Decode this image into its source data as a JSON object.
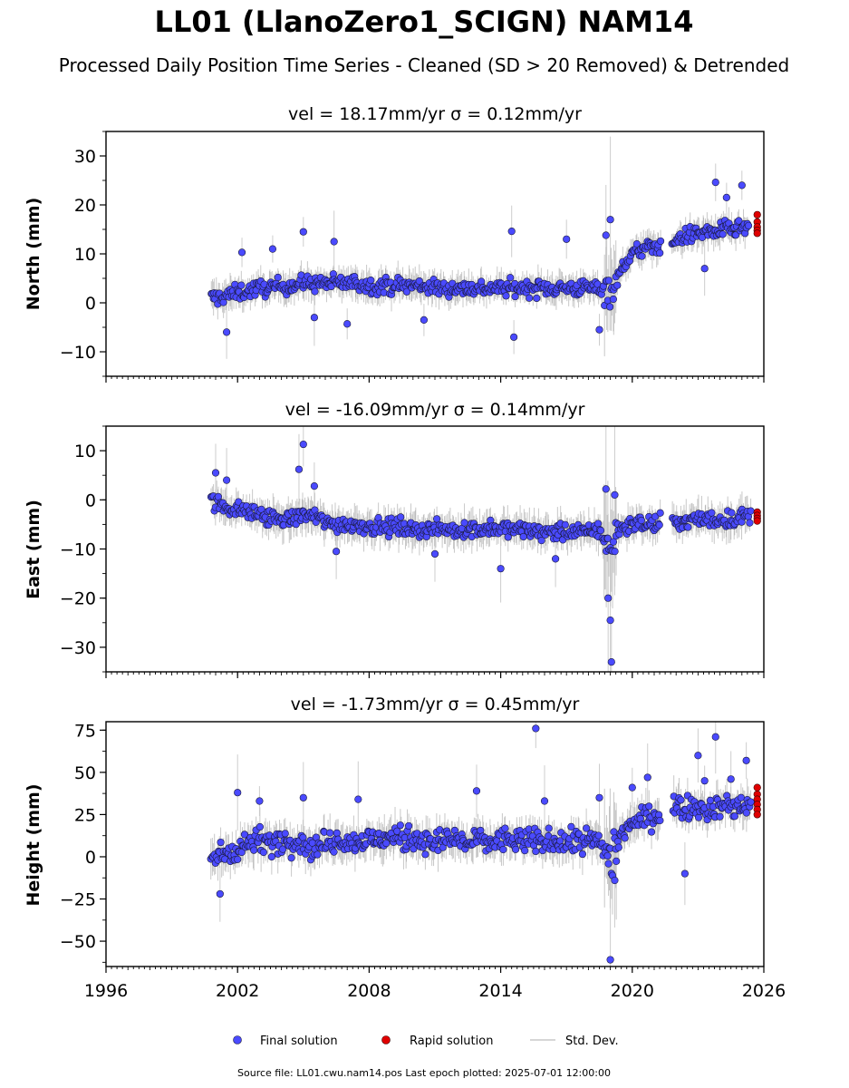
{
  "figure": {
    "title": "LL01 (LlanoZero1_SCIGN) NAM14",
    "subtitle": "Processed Daily Position Time Series - Cleaned (SD > 20 Removed) & Detrended",
    "footer": "Source file: LL01.cwu.nam14.pos  Last epoch plotted: 2025-07-01 12:00:00"
  },
  "legend": {
    "placement": "bottom-center",
    "items": [
      {
        "label": "Final solution",
        "color": "#4a4aff",
        "marker": "circle"
      },
      {
        "label": "Rapid solution",
        "color": "#e00000",
        "marker": "circle"
      },
      {
        "label": "Std. Dev.",
        "color": "#c8c8c8",
        "marker": "line"
      }
    ]
  },
  "colors": {
    "final": "#4a4aff",
    "rapid": "#e00000",
    "stddev": "#9a9a9a",
    "edge": "#1a1a3a"
  },
  "chart_data": [
    {
      "type": "scatter",
      "title": "vel = 18.17mm/yr   σ = 0.12mm/yr",
      "xlabel": "",
      "ylabel": "North (mm)",
      "xlim": [
        1996,
        2026
      ],
      "ylim": [
        -15,
        35
      ],
      "yticks": [
        -10,
        0,
        10,
        20,
        30
      ],
      "yticklabels": [
        "−10",
        "0",
        "10",
        "20",
        "30"
      ],
      "xticks": [
        1996,
        2002,
        2008,
        2014,
        2020,
        2026
      ],
      "xticklabels": [],
      "series": [
        {
          "name": "Final solution",
          "x": [
            2000.8,
            2001.0,
            2001.5,
            2002.0,
            2002.5,
            2003.0,
            2003.5,
            2004.0,
            2004.5,
            2005.0,
            2005.5,
            2006.0,
            2006.5,
            2007.0,
            2007.5,
            2008.0,
            2008.5,
            2009.0,
            2009.5,
            2010.0,
            2010.5,
            2011.0,
            2011.5,
            2012.0,
            2012.5,
            2013.0,
            2013.5,
            2014.0,
            2014.5,
            2015.0,
            2015.5,
            2016.0,
            2016.5,
            2017.0,
            2017.5,
            2018.0,
            2018.5,
            2018.9,
            2019.1,
            2019.3,
            2019.6,
            2020.0,
            2020.5,
            2021.0,
            2021.4,
            2021.9,
            2022.3,
            2022.8,
            2023.3,
            2023.8,
            2024.3,
            2024.8,
            2025.3
          ],
          "y": [
            1.0,
            1.0,
            1.5,
            2.0,
            2.5,
            3.0,
            3.0,
            3.5,
            3.5,
            4.0,
            4.0,
            4.0,
            4.0,
            4.0,
            4.0,
            3.5,
            3.5,
            3.5,
            3.5,
            3.5,
            3.5,
            3.0,
            3.0,
            3.0,
            3.0,
            3.0,
            3.0,
            3.0,
            3.0,
            3.0,
            3.0,
            3.0,
            3.0,
            3.0,
            3.0,
            3.0,
            3.0,
            3.0,
            3.0,
            4.0,
            8.0,
            10.0,
            11.0,
            11.5,
            12.0,
            12.5,
            13.5,
            14.0,
            14.5,
            14.5,
            15.0,
            15.0,
            15.5
          ],
          "scatter": 1.6,
          "band": 2.2,
          "outliers": [
            [
              2001.5,
              -6
            ],
            [
              2002.2,
              10.3
            ],
            [
              2003.6,
              11
            ],
            [
              2005.0,
              14.5
            ],
            [
              2005.5,
              -3
            ],
            [
              2006.4,
              12.5
            ],
            [
              2007.0,
              -4.3
            ],
            [
              2010.5,
              -3.5
            ],
            [
              2014.5,
              14.6
            ],
            [
              2014.6,
              -7
            ],
            [
              2017.0,
              13
            ],
            [
              2018.5,
              -5.5
            ],
            [
              2018.8,
              13.8
            ],
            [
              2019.0,
              17
            ],
            [
              2023.3,
              7
            ],
            [
              2023.8,
              24.6
            ],
            [
              2024.3,
              21.5
            ],
            [
              2025.0,
              24
            ]
          ]
        },
        {
          "name": "Rapid solution",
          "x": [
            2025.7,
            2025.7,
            2025.7,
            2025.7,
            2025.7
          ],
          "y": [
            18.0,
            16.5,
            15.5,
            14.8,
            14.2
          ]
        }
      ]
    },
    {
      "type": "scatter",
      "title": "vel = -16.09mm/yr   σ = 0.14mm/yr",
      "xlabel": "",
      "ylabel": "East (mm)",
      "xlim": [
        1996,
        2026
      ],
      "ylim": [
        -35,
        15
      ],
      "yticks": [
        -30,
        -20,
        -10,
        0,
        10
      ],
      "yticklabels": [
        "−30",
        "−20",
        "−10",
        "0",
        "10"
      ],
      "xticks": [
        1996,
        2002,
        2008,
        2014,
        2020,
        2026
      ],
      "xticklabels": [],
      "series": [
        {
          "name": "Final solution",
          "x": [
            2000.8,
            2001.0,
            2001.5,
            2002.0,
            2002.5,
            2003.0,
            2003.5,
            2004.0,
            2004.5,
            2005.0,
            2005.5,
            2006.0,
            2006.5,
            2007.0,
            2007.5,
            2008.0,
            2008.5,
            2009.0,
            2009.5,
            2010.0,
            2010.5,
            2011.0,
            2011.5,
            2012.0,
            2012.5,
            2013.0,
            2013.5,
            2014.0,
            2014.5,
            2015.0,
            2015.5,
            2016.0,
            2016.5,
            2017.0,
            2017.5,
            2018.0,
            2018.5,
            2018.8,
            2019.0,
            2019.2,
            2019.5,
            2020.0,
            2020.5,
            2021.0,
            2021.3,
            2021.9,
            2022.4,
            2022.9,
            2023.4,
            2023.9,
            2024.4,
            2024.9,
            2025.4
          ],
          "y": [
            0.0,
            -0.5,
            -1.5,
            -2.0,
            -2.5,
            -3.0,
            -3.5,
            -4.0,
            -4.0,
            -3.0,
            -3.5,
            -4.5,
            -5.0,
            -5.0,
            -5.0,
            -5.5,
            -5.5,
            -5.5,
            -5.5,
            -6.0,
            -6.0,
            -6.0,
            -6.0,
            -6.0,
            -6.0,
            -6.0,
            -6.0,
            -6.0,
            -6.0,
            -6.0,
            -6.5,
            -6.5,
            -6.5,
            -6.5,
            -6.5,
            -6.5,
            -6.0,
            -9.0,
            -11.0,
            -7.0,
            -5.5,
            -5.0,
            -5.0,
            -5.0,
            -4.5,
            -4.5,
            -4.5,
            -4.0,
            -4.0,
            -4.0,
            -4.0,
            -3.5,
            -3.5
          ],
          "scatter": 1.6,
          "band": 2.5,
          "outliers": [
            [
              2001.0,
              5.5
            ],
            [
              2001.5,
              4
            ],
            [
              2004.8,
              6.2
            ],
            [
              2005.0,
              11.3
            ],
            [
              2005.5,
              2.8
            ],
            [
              2006.5,
              -10.5
            ],
            [
              2011.0,
              -11
            ],
            [
              2014.0,
              -14
            ],
            [
              2016.5,
              -12
            ],
            [
              2018.8,
              2.2
            ],
            [
              2018.9,
              -20
            ],
            [
              2019.0,
              -24.5
            ],
            [
              2019.05,
              -33
            ],
            [
              2019.2,
              1
            ]
          ]
        },
        {
          "name": "Rapid solution",
          "x": [
            2025.7,
            2025.7,
            2025.7,
            2025.7
          ],
          "y": [
            -2.5,
            -3.2,
            -3.8,
            -4.3
          ]
        }
      ]
    },
    {
      "type": "scatter",
      "title": "vel = -1.73mm/yr   σ = 0.45mm/yr",
      "xlabel": "",
      "ylabel": "Height (mm)",
      "xlim": [
        1996,
        2026
      ],
      "ylim": [
        -65,
        80
      ],
      "yticks": [
        -50,
        -25,
        0,
        25,
        50,
        75
      ],
      "yticklabels": [
        "−50",
        "−25",
        "0",
        "25",
        "50",
        "75"
      ],
      "xticks": [
        1996,
        2002,
        2008,
        2014,
        2020,
        2026
      ],
      "xticklabels": [
        "1996",
        "2002",
        "2008",
        "2014",
        "2020",
        "2026"
      ],
      "series": [
        {
          "name": "Final solution",
          "x": [
            2000.8,
            2001.0,
            2001.5,
            2002.0,
            2002.5,
            2003.0,
            2003.5,
            2004.0,
            2004.5,
            2005.0,
            2005.5,
            2006.0,
            2006.5,
            2007.0,
            2007.5,
            2008.0,
            2008.5,
            2009.0,
            2009.5,
            2010.0,
            2010.5,
            2011.0,
            2011.5,
            2012.0,
            2012.5,
            2013.0,
            2013.5,
            2014.0,
            2014.5,
            2015.0,
            2015.5,
            2016.0,
            2016.5,
            2017.0,
            2017.5,
            2018.0,
            2018.5,
            2018.8,
            2019.0,
            2019.3,
            2019.6,
            2020.0,
            2020.5,
            2021.0,
            2021.3,
            2021.9,
            2022.4,
            2022.9,
            2023.4,
            2023.9,
            2024.4,
            2024.9,
            2025.4
          ],
          "y": [
            -2,
            0,
            3,
            5,
            8,
            10,
            8,
            10,
            10,
            8,
            5,
            8,
            10,
            10,
            8,
            10,
            10,
            12,
            10,
            12,
            10,
            8,
            10,
            10,
            8,
            10,
            8,
            10,
            10,
            8,
            10,
            8,
            10,
            8,
            10,
            10,
            8,
            4,
            0,
            8,
            15,
            20,
            22,
            25,
            25,
            30,
            30,
            30,
            28,
            30,
            30,
            30,
            32
          ],
          "scatter": 7,
          "band": 8,
          "outliers": [
            [
              2001.2,
              -22
            ],
            [
              2002.0,
              38
            ],
            [
              2003.0,
              33
            ],
            [
              2005.0,
              35
            ],
            [
              2007.5,
              34
            ],
            [
              2012.9,
              39
            ],
            [
              2015.6,
              76
            ],
            [
              2016.0,
              33
            ],
            [
              2018.5,
              35
            ],
            [
              2019.0,
              -61
            ],
            [
              2019.2,
              -14
            ],
            [
              2020.0,
              41
            ],
            [
              2020.7,
              47
            ],
            [
              2022.4,
              -10
            ],
            [
              2023.0,
              60
            ],
            [
              2023.3,
              45
            ],
            [
              2023.8,
              71
            ],
            [
              2024.5,
              46
            ],
            [
              2025.2,
              57
            ]
          ]
        },
        {
          "name": "Rapid solution",
          "x": [
            2025.7,
            2025.7,
            2025.7,
            2025.7,
            2025.7,
            2025.7
          ],
          "y": [
            41,
            37,
            34,
            31,
            28,
            25
          ]
        }
      ]
    }
  ]
}
